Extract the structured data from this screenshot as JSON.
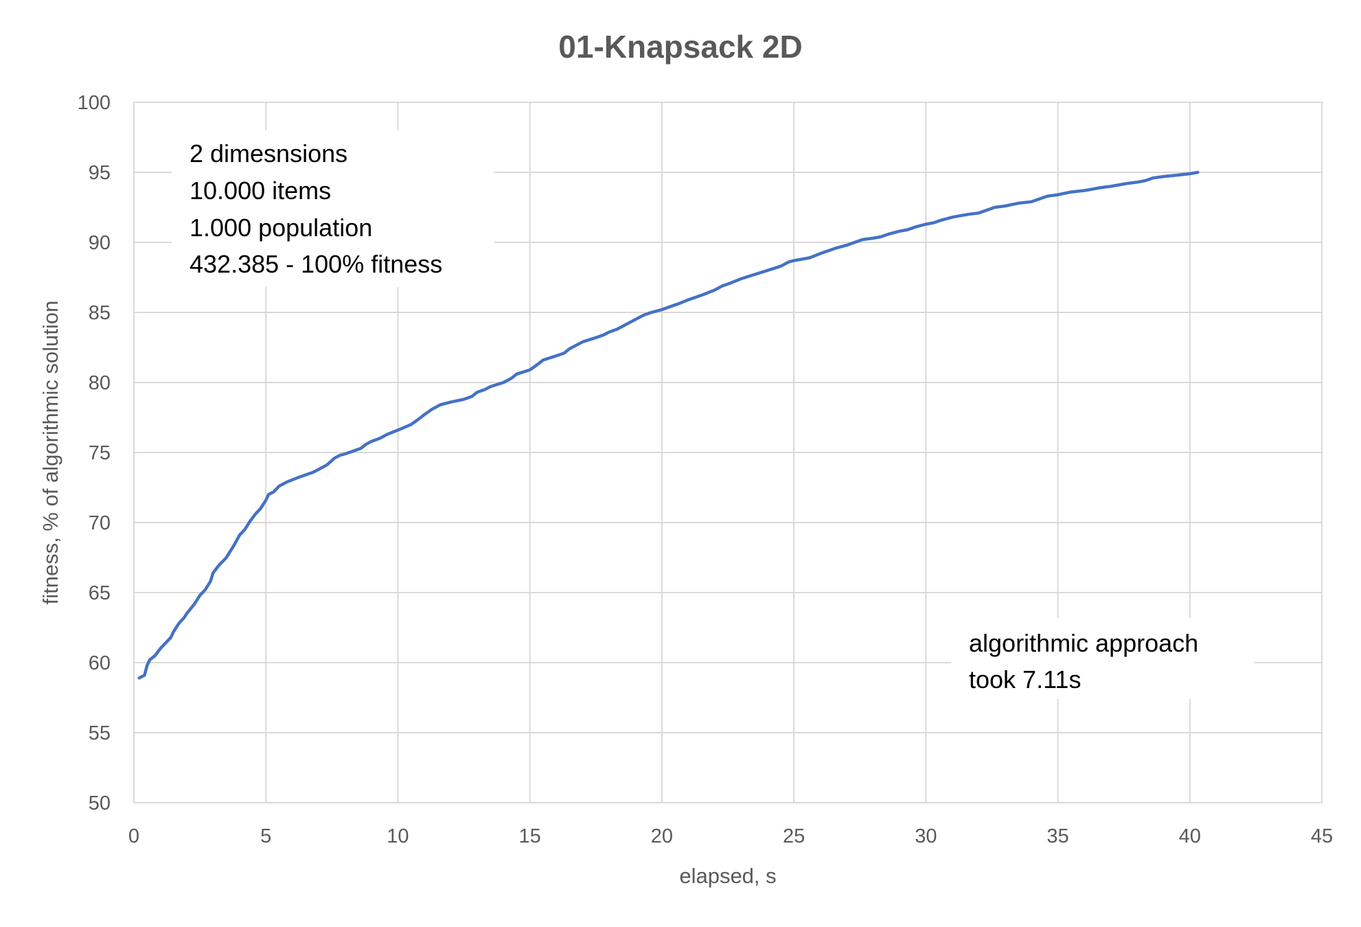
{
  "chart_data": {
    "type": "line",
    "title": "01-Knapsack 2D",
    "xlabel": "elapsed, s",
    "ylabel": "fitness, % of algorithmic solution",
    "xlim": [
      0,
      45
    ],
    "ylim": [
      50,
      100
    ],
    "x_ticks": [
      "0",
      "5",
      "10",
      "15",
      "20",
      "25",
      "30",
      "35",
      "40",
      "45"
    ],
    "y_ticks": [
      "50",
      "55",
      "60",
      "65",
      "70",
      "75",
      "80",
      "85",
      "90",
      "95",
      "100"
    ],
    "grid": true,
    "series_color": "#4472c4",
    "series": [
      {
        "x": [
          0.2,
          0.4,
          0.5,
          0.6,
          0.8,
          1.0,
          1.2,
          1.4,
          1.5,
          1.7,
          1.9,
          2.0,
          2.3,
          2.5,
          2.7,
          2.9,
          3.0,
          3.2,
          3.5,
          3.8,
          4.0,
          4.2,
          4.4,
          4.6,
          4.8,
          5.0,
          5.1,
          5.3,
          5.5,
          5.8,
          6.2,
          6.5,
          6.8,
          7.0,
          7.3,
          7.6,
          7.8,
          8.0,
          8.3,
          8.6,
          8.8,
          9.0,
          9.3,
          9.6,
          10.0,
          10.5,
          10.8,
          11.0,
          11.3,
          11.6,
          12.0,
          12.5,
          12.8,
          13.0,
          13.3,
          13.5,
          14.0,
          14.3,
          14.5,
          15.0,
          15.3,
          15.5,
          16.0,
          16.3,
          16.5,
          16.8,
          17.0,
          17.5,
          17.8,
          18.0,
          18.3,
          18.6,
          19.0,
          19.3,
          19.6,
          20.0,
          20.3,
          20.6,
          21.0,
          21.3,
          21.6,
          22.0,
          22.3,
          22.6,
          23.0,
          23.5,
          24.0,
          24.5,
          24.8,
          25.0,
          25.3,
          25.6,
          26.0,
          26.3,
          26.6,
          27.0,
          27.3,
          27.6,
          28.0,
          28.3,
          28.6,
          29.0,
          29.3,
          29.6,
          30.0,
          30.3,
          30.6,
          31.0,
          31.3,
          31.6,
          32.0,
          32.3,
          32.6,
          33.0,
          33.5,
          34.0,
          34.3,
          34.6,
          35.0,
          35.5,
          36.0,
          36.3,
          36.6,
          37.0,
          37.3,
          37.6,
          38.0,
          38.3,
          38.6,
          39.0,
          39.5,
          40.0,
          40.3
        ],
        "y": [
          58.9,
          59.1,
          59.8,
          60.2,
          60.5,
          61.0,
          61.4,
          61.8,
          62.2,
          62.8,
          63.2,
          63.5,
          64.2,
          64.8,
          65.2,
          65.8,
          66.4,
          66.9,
          67.5,
          68.4,
          69.1,
          69.5,
          70.1,
          70.6,
          71.0,
          71.6,
          72.0,
          72.2,
          72.6,
          72.9,
          73.2,
          73.4,
          73.6,
          73.8,
          74.1,
          74.6,
          74.8,
          74.9,
          75.1,
          75.3,
          75.6,
          75.8,
          76.0,
          76.3,
          76.6,
          77.0,
          77.4,
          77.7,
          78.1,
          78.4,
          78.6,
          78.8,
          79.0,
          79.3,
          79.5,
          79.7,
          80.0,
          80.3,
          80.6,
          80.9,
          81.3,
          81.6,
          81.9,
          82.1,
          82.4,
          82.7,
          82.9,
          83.2,
          83.4,
          83.6,
          83.8,
          84.1,
          84.5,
          84.8,
          85.0,
          85.2,
          85.4,
          85.6,
          85.9,
          86.1,
          86.3,
          86.6,
          86.9,
          87.1,
          87.4,
          87.7,
          88.0,
          88.3,
          88.6,
          88.7,
          88.8,
          88.9,
          89.2,
          89.4,
          89.6,
          89.8,
          90.0,
          90.2,
          90.3,
          90.4,
          90.6,
          90.8,
          90.9,
          91.1,
          91.3,
          91.4,
          91.6,
          91.8,
          91.9,
          92.0,
          92.1,
          92.3,
          92.5,
          92.6,
          92.8,
          92.9,
          93.1,
          93.3,
          93.4,
          93.6,
          93.7,
          93.8,
          93.9,
          94.0,
          94.1,
          94.2,
          94.3,
          94.4,
          94.6,
          94.7,
          94.8,
          94.9,
          95.0
        ]
      }
    ],
    "annotations": {
      "top_left": [
        "2 dimesnsions",
        "10.000 items",
        "1.000 population",
        "432.385 - 100% fitness"
      ],
      "bottom_right": [
        "algorithmic approach",
        "took 7.11s"
      ]
    }
  }
}
